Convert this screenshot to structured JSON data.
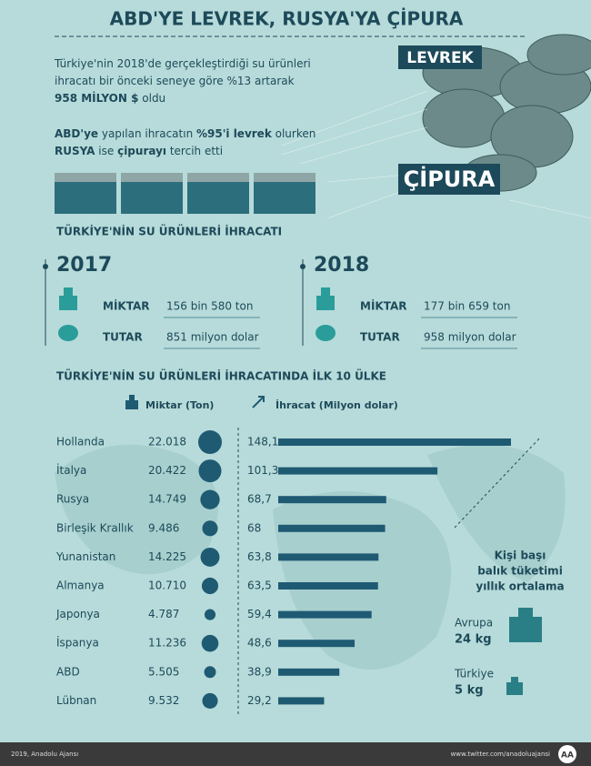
{
  "header": {
    "title": "ABD'YE LEVREK, RUSYA'YA ÇİPURA"
  },
  "intro": [
    [
      {
        "text": "Türkiye'nin 2018'de gerçekleştirdiği su ürünleri",
        "bold": false
      }
    ],
    [
      {
        "text": "ihracatı bir önceki seneye göre %13 artarak",
        "bold": false
      }
    ],
    [
      {
        "text": "958 MİLYON $",
        "bold": true
      },
      {
        "text": " oldu",
        "bold": false
      }
    ]
  ],
  "highlight": [
    [
      {
        "text": "ABD'ye",
        "bold": true
      },
      {
        "text": " yapılan ihracatın ",
        "bold": false
      },
      {
        "text": "%95'i levrek",
        "bold": true
      },
      {
        "text": " olurken",
        "bold": false
      }
    ],
    [
      {
        "text": "RUSYA",
        "bold": true
      },
      {
        "text": " ise ",
        "bold": false
      },
      {
        "text": "çipurayı",
        "bold": true
      },
      {
        "text": " tercih etti",
        "bold": false
      }
    ]
  ],
  "fish_labels": {
    "top": "LEVREK",
    "bottom": "ÇİPURA"
  },
  "exports": {
    "title": "TÜRKİYE'NİN SU ÜRÜNLERİ İHRACATI",
    "years": [
      {
        "year": "2017",
        "miktar_label": "MİKTAR",
        "miktar": "156 bin 580 ton",
        "tutar_label": "TUTAR",
        "tutar": "851 milyon dolar"
      },
      {
        "year": "2018",
        "miktar_label": "MİKTAR",
        "miktar": "177 bin 659 ton",
        "tutar_label": "TUTAR",
        "tutar": "958 milyon dolar"
      }
    ]
  },
  "ranking": {
    "title": "TÜRKİYE'NİN SU ÜRÜNLERİ İHRACATINDA İLK 10 ÜLKE",
    "miktar_header": "Miktar (Ton)",
    "ihracat_header": "İhracat (Milyon dolar)",
    "color": "#1f5a73",
    "rows": [
      {
        "country": "Hollanda",
        "miktar": {
          "value": 22018,
          "label": "22.018"
        },
        "ihracat": {
          "value": 148.1,
          "label": "148,1"
        }
      },
      {
        "country": "İtalya",
        "miktar": {
          "value": 20422,
          "label": "20.422"
        },
        "ihracat": {
          "value": 101.3,
          "label": "101,3"
        }
      },
      {
        "country": "Rusya",
        "miktar": {
          "value": 14749,
          "label": "14.749"
        },
        "ihracat": {
          "value": 68.7,
          "label": "68,7"
        }
      },
      {
        "country": "Birleşik Krallık",
        "miktar": {
          "value": 9486,
          "label": "9.486"
        },
        "ihracat": {
          "value": 68,
          "label": "68"
        }
      },
      {
        "country": "Yunanistan",
        "miktar": {
          "value": 14225,
          "label": "14.225"
        },
        "ihracat": {
          "value": 63.8,
          "label": "63,8"
        }
      },
      {
        "country": "Almanya",
        "miktar": {
          "value": 10710,
          "label": "10.710"
        },
        "ihracat": {
          "value": 63.5,
          "label": "63,5"
        }
      },
      {
        "country": "Japonya",
        "miktar": {
          "value": 4787,
          "label": "4.787"
        },
        "ihracat": {
          "value": 59.4,
          "label": "59,4"
        }
      },
      {
        "country": "İspanya",
        "miktar": {
          "value": 11236,
          "label": "11.236"
        },
        "ihracat": {
          "value": 48.6,
          "label": "48,6"
        }
      },
      {
        "country": "ABD",
        "miktar": {
          "value": 5505,
          "label": "5.505"
        },
        "ihracat": {
          "value": 38.9,
          "label": "38,9"
        }
      },
      {
        "country": "Lübnan",
        "miktar": {
          "value": 9532,
          "label": "9.532"
        },
        "ihracat": {
          "value": 29.2,
          "label": "29,2"
        }
      }
    ]
  },
  "consumption": {
    "title": [
      "Kişi başı",
      "balık tüketimi",
      "yıllık ortalama"
    ],
    "items": [
      {
        "region": "Avrupa",
        "amount": "24 kg"
      },
      {
        "region": "Türkiye",
        "amount": "5 kg"
      }
    ]
  },
  "footer": {
    "left": "2019, Anadolu Ajansı",
    "right": "www.twitter.com/anadoluajansi",
    "logo": "AA"
  }
}
